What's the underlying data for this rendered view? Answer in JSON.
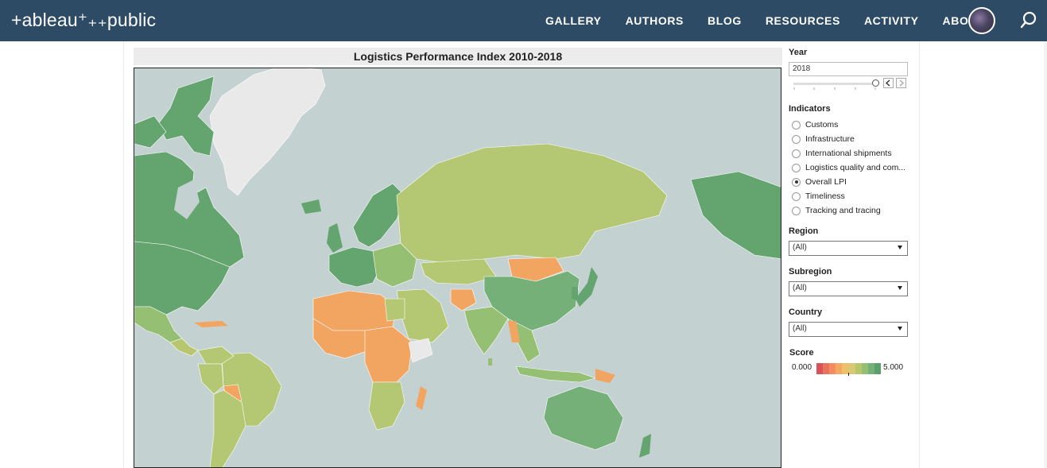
{
  "header": {
    "logo": "+ableau⁺₊₊public",
    "nav": [
      "GALLERY",
      "AUTHORS",
      "BLOG",
      "RESOURCES",
      "ACTIVITY",
      "ABOUT"
    ],
    "avatar_icon": "user-avatar",
    "search_icon": "search-icon"
  },
  "viz": {
    "title": "Logistics Performance Index 2010-2018"
  },
  "filters": {
    "year_label": "Year",
    "year_value": "2018",
    "indicators_label": "Indicators",
    "indicators": [
      {
        "label": "Customs",
        "checked": false
      },
      {
        "label": "Infrastructure",
        "checked": false
      },
      {
        "label": "International shipments",
        "checked": false
      },
      {
        "label": "Logistics quality and com...",
        "checked": false
      },
      {
        "label": "Overall LPI",
        "checked": true
      },
      {
        "label": "Timeliness",
        "checked": false
      },
      {
        "label": "Tracking and tracing",
        "checked": false
      }
    ],
    "region_label": "Region",
    "region_value": "(All)",
    "subregion_label": "Subregion",
    "subregion_value": "(All)",
    "country_label": "Country",
    "country_value": "(All)"
  },
  "legend": {
    "title": "Score",
    "min": "0.000",
    "max": "5.000",
    "colors": [
      "#d9545a",
      "#e9725a",
      "#f38d5d",
      "#f5a861",
      "#edc16c",
      "#d9c973",
      "#b7c66f",
      "#95bf73",
      "#74b077",
      "#5a9f6c"
    ]
  },
  "map_colors": {
    "ocean": "#c3d1d1",
    "land_na": "#e9e9e9",
    "high": "#64a46f",
    "mid_high": "#8fbf77",
    "mid": "#b4c874",
    "low": "#f2a561",
    "very_low": "#ef9a5c"
  }
}
